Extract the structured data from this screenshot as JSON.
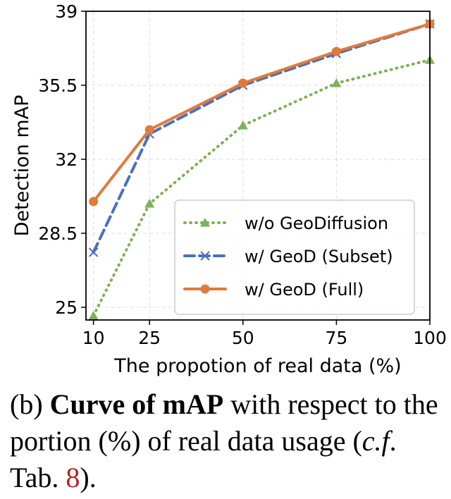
{
  "chart_data": {
    "type": "line",
    "xlabel": "The propotion of real data (%)",
    "ylabel": "Detection mAP",
    "x": [
      10,
      25,
      50,
      75,
      100
    ],
    "x_ticks": [
      "10",
      "25",
      "50",
      "75",
      "100"
    ],
    "y_ticks": [
      "25",
      "28.5",
      "32",
      "35.5",
      "39"
    ],
    "ylim": [
      24.4,
      39
    ],
    "xlim": [
      8,
      100
    ],
    "grid": true,
    "legend_position": "lower-right",
    "series": [
      {
        "name": "w/o GeoDiffusion",
        "values": [
          24.6,
          29.9,
          33.6,
          35.6,
          36.7
        ],
        "color": "#7fb05a",
        "style": "dotted",
        "marker": "triangle"
      },
      {
        "name": "w/ GeoD (Subset)",
        "values": [
          27.6,
          33.2,
          35.5,
          37.0,
          38.4
        ],
        "color": "#4a6fbf",
        "style": "dashed",
        "marker": "x"
      },
      {
        "name": "w/ GeoD (Full)",
        "values": [
          30.0,
          33.4,
          35.6,
          37.1,
          38.4
        ],
        "color": "#e07b3a",
        "style": "solid",
        "marker": "circle"
      }
    ]
  },
  "caption": {
    "prefix": "(b) ",
    "bold": "Curve of mAP",
    "middle": " with respect to the portion (%) of real data usage (",
    "cf": "c.f",
    "tab": ". Tab. ",
    "ref": "8",
    "suffix": ")."
  }
}
